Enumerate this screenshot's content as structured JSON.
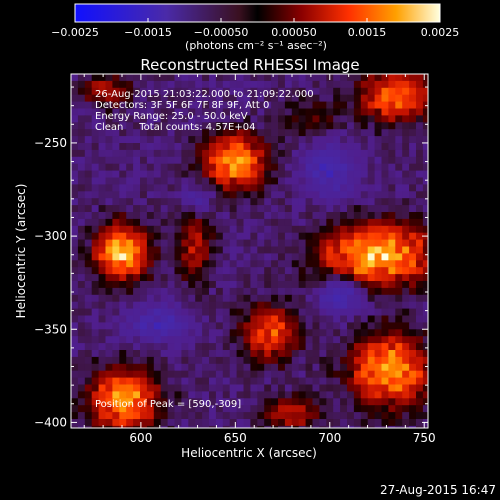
{
  "chart_data": {
    "type": "heatmap",
    "title": "Reconstructed RHESSI Image",
    "xlabel": "Heliocentric X (arcsec)",
    "ylabel": "Heliocentric Y (arcsec)",
    "xlim": [
      563,
      752
    ],
    "ylim": [
      -403,
      -213
    ],
    "x_ticks": [
      600,
      650,
      700,
      750
    ],
    "y_ticks": [
      -250,
      -300,
      -350,
      -400
    ],
    "colorbar": {
      "label": "(photons cm⁻² s⁻¹ asec⁻²)",
      "range": [
        -0.0025,
        0.0025
      ],
      "ticks": [
        "-0.0025",
        "-0.0015",
        "-0.00050",
        "0.00050",
        "0.0015",
        "0.0025"
      ],
      "tick_values": [
        -0.0025,
        -0.0015,
        -0.0005,
        0.0005,
        0.0015,
        0.0025
      ]
    },
    "annotations": [
      "26-Aug-2015 21:03:22.000 to 21:09:22.000",
      "Detectors: 3F 5F 6F 7F 8F 9F, Att 0",
      "Energy Range: 25.0 - 50.0 keV",
      "Clean     Total counts: 4.57E+04"
    ],
    "peak_label": "Position of Peak = [590,-309]",
    "sources": [
      {
        "x": 590,
        "y": -309,
        "intensity": 0.0025,
        "sx": 9,
        "sy": 10
      },
      {
        "x": 725,
        "y": -310,
        "intensity": 0.0024,
        "sx": 20,
        "sy": 11
      },
      {
        "x": 650,
        "y": -260,
        "intensity": 0.0021,
        "sx": 11,
        "sy": 10
      },
      {
        "x": 732,
        "y": -372,
        "intensity": 0.0022,
        "sx": 14,
        "sy": 13
      },
      {
        "x": 735,
        "y": -225,
        "intensity": 0.0019,
        "sx": 13,
        "sy": 9
      },
      {
        "x": 591,
        "y": -388,
        "intensity": 0.0022,
        "sx": 12,
        "sy": 11
      },
      {
        "x": 668,
        "y": -352,
        "intensity": 0.0016,
        "sx": 10,
        "sy": 10
      },
      {
        "x": 628,
        "y": -305,
        "intensity": 0.001,
        "sx": 7,
        "sy": 14
      },
      {
        "x": 680,
        "y": -395,
        "intensity": 0.0011,
        "sx": 10,
        "sy": 6
      },
      {
        "x": 582,
        "y": -222,
        "intensity": 0.001,
        "sx": 9,
        "sy": 6
      },
      {
        "x": 690,
        "y": -237,
        "intensity": 0.0006,
        "sx": 9,
        "sy": 7
      }
    ],
    "negative_regions": [
      {
        "x": 706,
        "y": -332,
        "intensity": -0.0014,
        "sx": 8,
        "sy": 7
      },
      {
        "x": 700,
        "y": -265,
        "intensity": -0.0011,
        "sx": 10,
        "sy": 10
      },
      {
        "x": 610,
        "y": -347,
        "intensity": -0.0011,
        "sx": 12,
        "sy": 7
      },
      {
        "x": 630,
        "y": -280,
        "intensity": -0.0008,
        "sx": 6,
        "sy": 6
      }
    ],
    "grid": false
  },
  "footer": {
    "timestamp": "27-Aug-2015 16:47"
  }
}
